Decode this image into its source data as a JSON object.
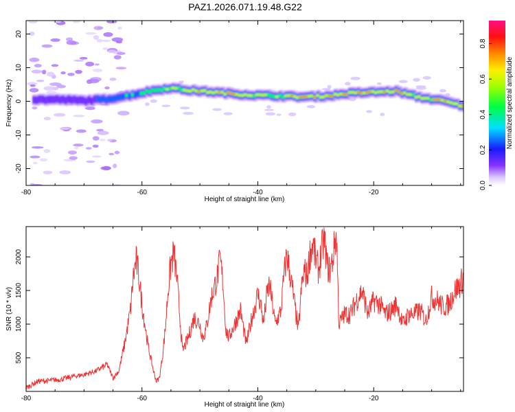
{
  "title": "PAZ1.2026.071.19.48.G22",
  "chart_data": [
    {
      "type": "heatmap",
      "xlabel": "Height of straight line (km)",
      "ylabel": "Frequency (Hz)",
      "xlim": [
        -80,
        -4.5
      ],
      "ylim": [
        -25,
        24
      ],
      "xticks": [
        -80,
        -60,
        -40,
        -20
      ],
      "xtick_labels": [
        "-80",
        "-60",
        "-40",
        "-20"
      ],
      "yticks": [
        -20,
        -10,
        0,
        10,
        20
      ],
      "ytick_labels": [
        "-20",
        "-10",
        "0",
        "10",
        "20"
      ],
      "colorbar": {
        "label": "Normalized spectral amplitude",
        "range": [
          0,
          0.93
        ],
        "ticks": [
          0.0,
          0.2,
          0.4,
          0.6,
          0.8
        ],
        "tick_labels": [
          "0.0",
          "0.2",
          "0.4",
          "0.6",
          "0.8"
        ]
      },
      "ridge": {
        "x": [
          -78,
          -74,
          -70,
          -66,
          -62,
          -58,
          -55,
          -52,
          -48,
          -44,
          -40,
          -36,
          -32,
          -28,
          -24,
          -20,
          -16,
          -12,
          -8,
          -5
        ],
        "frequency": [
          0.5,
          0.5,
          0.2,
          0.6,
          1.8,
          3.2,
          4.0,
          3.3,
          2.8,
          2.2,
          1.8,
          1.6,
          1.3,
          1.6,
          2.4,
          2.7,
          3.0,
          1.2,
          0.2,
          -1.2
        ],
        "amplitude": [
          0.2,
          0.22,
          0.18,
          0.3,
          0.45,
          0.55,
          0.62,
          0.8,
          0.75,
          0.85,
          0.7,
          0.65,
          0.9,
          0.8,
          0.85,
          0.8,
          0.88,
          0.7,
          0.8,
          0.75
        ]
      }
    },
    {
      "type": "line",
      "xlabel": "Height of straight line (km)",
      "ylabel": "SNR (10 * v/v)",
      "xlim": [
        -80,
        -4.5
      ],
      "ylim": [
        0,
        2450
      ],
      "xticks": [
        -80,
        -60,
        -40,
        -20
      ],
      "xtick_labels": [
        "-80",
        "-60",
        "-40",
        "-20"
      ],
      "yticks": [
        500,
        1000,
        1500,
        2000
      ],
      "ytick_labels": [
        "500",
        "1000",
        "1500",
        "2000"
      ],
      "series": [
        {
          "name": "SNR",
          "color": "#ee3333",
          "x": [
            -80,
            -78,
            -76,
            -74,
            -72,
            -70,
            -68,
            -66,
            -65,
            -64,
            -63,
            -62,
            -61.5,
            -61,
            -60.5,
            -60,
            -59,
            -58,
            -57.5,
            -57,
            -56.5,
            -56,
            -55.5,
            -55,
            -54.5,
            -54,
            -53,
            -52,
            -51,
            -50,
            -49.5,
            -49,
            -48,
            -47,
            -46.5,
            -46,
            -45.5,
            -45,
            -44,
            -43,
            -42,
            -41,
            -40,
            -39.5,
            -39,
            -38.5,
            -38,
            -37,
            -36,
            -35.5,
            -35,
            -34,
            -33,
            -32.5,
            -32,
            -31.5,
            -31,
            -30.5,
            -30,
            -29.5,
            -29,
            -28.5,
            -28,
            -27.5,
            -27,
            -26.7,
            -26.4,
            -26,
            -25,
            -24,
            -23,
            -22,
            -21,
            -20,
            -19,
            -18,
            -17,
            -16,
            -15,
            -14,
            -13,
            -12,
            -11,
            -10,
            -9,
            -8,
            -7,
            -6,
            -5,
            -4.5
          ],
          "y": [
            50,
            150,
            160,
            180,
            220,
            250,
            300,
            400,
            200,
            300,
            700,
            1200,
            1700,
            1950,
            1700,
            1300,
            700,
            300,
            150,
            200,
            500,
            900,
            1500,
            1900,
            2050,
            1700,
            600,
            800,
            1100,
            1000,
            800,
            900,
            1400,
            1700,
            1950,
            1600,
            900,
            800,
            1000,
            1200,
            700,
            1100,
            1450,
            1300,
            1000,
            1400,
            1600,
            1000,
            1200,
            1700,
            2050,
            1500,
            900,
            1500,
            1800,
            1700,
            2050,
            2200,
            1950,
            1800,
            2100,
            2250,
            1850,
            1800,
            2000,
            2250,
            2300,
            1000,
            1150,
            1150,
            1350,
            1500,
            1150,
            1350,
            1300,
            1150,
            1200,
            1300,
            1000,
            1150,
            1150,
            1200,
            1050,
            1400,
            1350,
            1250,
            1300,
            1500,
            1600,
            1700
          ]
        }
      ]
    }
  ]
}
